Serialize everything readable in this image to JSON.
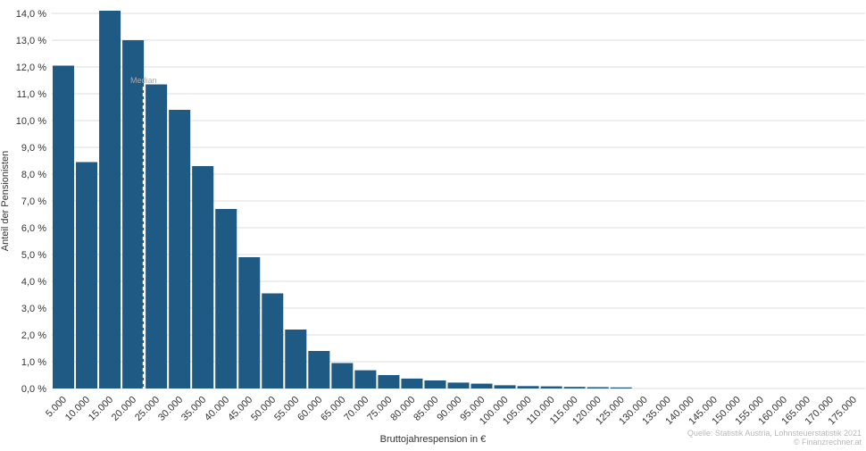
{
  "chart_data": {
    "type": "bar",
    "categories": [
      "5.000",
      "10.000",
      "15.000",
      "20.000",
      "25.000",
      "30.000",
      "35.000",
      "40.000",
      "45.000",
      "50.000",
      "55.000",
      "60.000",
      "65.000",
      "70.000",
      "75.000",
      "80.000",
      "85.000",
      "90.000",
      "95.000",
      "100.000",
      "105.000",
      "110.000",
      "115.000",
      "120.000",
      "125.000",
      "130.000",
      "135.000",
      "140.000",
      "145.000",
      "150.000",
      "155.000",
      "160.000",
      "165.000",
      "170.000",
      "175.000"
    ],
    "values": [
      12.05,
      8.45,
      14.1,
      13.0,
      11.35,
      10.4,
      8.3,
      6.7,
      4.9,
      3.55,
      2.2,
      1.4,
      0.95,
      0.68,
      0.5,
      0.37,
      0.3,
      0.22,
      0.18,
      0.12,
      0.09,
      0.08,
      0.06,
      0.05,
      0.04,
      0.0,
      0.0,
      0.0,
      0.0,
      0.0,
      0.0,
      0.0,
      0.0,
      0.0,
      0.0
    ],
    "xlabel": "Bruttojahrespension in €",
    "ylabel": "Anteil der Pensionisten",
    "ylim": [
      0,
      14
    ],
    "yticks": [
      0,
      1,
      2,
      3,
      4,
      5,
      6,
      7,
      8,
      9,
      10,
      11,
      12,
      13,
      14
    ],
    "ytick_labels": [
      "0,0 %",
      "1,0 %",
      "2,0 %",
      "3,0 %",
      "4,0 %",
      "5,0 %",
      "6,0 %",
      "7,0 %",
      "8,0 %",
      "9,0 %",
      "10,0 %",
      "11,0 %",
      "12,0 %",
      "13,0 %",
      "14,0 %"
    ],
    "grid": true,
    "bar_color": "#1f5a85",
    "grid_color": "#dcdcdc",
    "median": {
      "label": "Median",
      "x_value": 22250,
      "color": "#ffffff"
    },
    "source": {
      "line1": "Quelle: Statistik Austria, Lohnsteuerstatistik 2021",
      "line2": "© Finanzrechner.at"
    }
  }
}
